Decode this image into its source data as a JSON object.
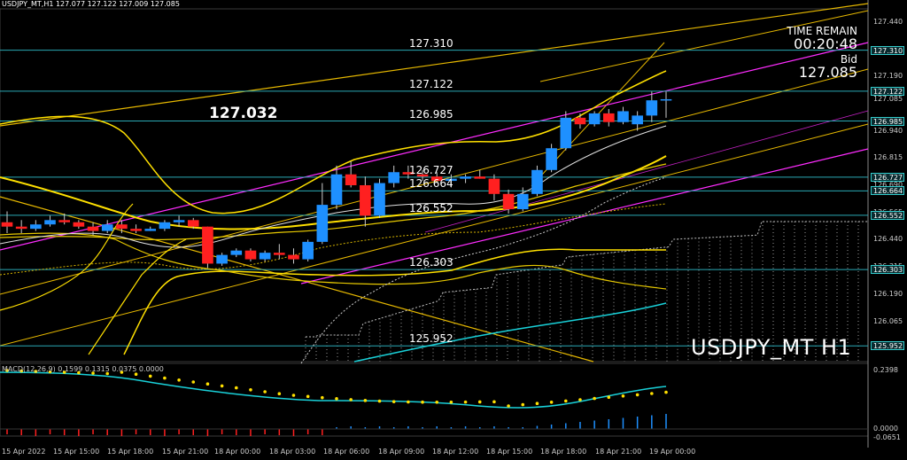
{
  "header": {
    "title": "USDJPY_MT,H1  127.077 127.122 127.009 127.085"
  },
  "big_price": "127.032",
  "levels": [
    {
      "label": "127.310",
      "price": 127.31
    },
    {
      "label": "127.122",
      "price": 127.122
    },
    {
      "label": "126.985",
      "price": 126.985
    },
    {
      "label": "126.727",
      "price": 126.727
    },
    {
      "label": "126.664",
      "price": 126.664
    },
    {
      "label": "126.552",
      "price": 126.552
    },
    {
      "label": "126.303",
      "price": 126.303
    },
    {
      "label": "125.952",
      "price": 125.952
    }
  ],
  "time_remain": {
    "label": "TIME REMAIN",
    "value": "00:20:48"
  },
  "bid": {
    "label": "Bid",
    "value": "127.085"
  },
  "symbol_label": "USDJPY_MT H1",
  "price_axis": [
    "127.440",
    "127.310",
    "127.190",
    "127.085",
    "126.985",
    "126.940",
    "126.815",
    "126.690",
    "126.565",
    "126.440",
    "126.315",
    "126.190",
    "126.065",
    "125.952"
  ],
  "price_tags": [
    {
      "text": "127.310",
      "price": 127.31
    },
    {
      "text": "127.122",
      "price": 127.122
    },
    {
      "text": "126.985",
      "price": 126.985
    },
    {
      "text": "126.727",
      "price": 126.727
    },
    {
      "text": "126.664",
      "price": 126.664
    },
    {
      "text": "126.552",
      "price": 126.552
    },
    {
      "text": "126.303",
      "price": 126.303
    },
    {
      "text": "125.952",
      "price": 125.952
    }
  ],
  "time_axis": [
    "15 Apr 2022",
    "15 Apr 15:00",
    "15 Apr 18:00",
    "15 Apr 21:00",
    "18 Apr 00:00",
    "18 Apr 03:00",
    "18 Apr 06:00",
    "18 Apr 09:00",
    "18 Apr 12:00",
    "18 Apr 15:00",
    "18 Apr 18:00",
    "18 Apr 21:00",
    "19 Apr 00:00"
  ],
  "macd": {
    "label": "MACD(12,26,9) 0.1599 0.1315 0.0375 0.0000",
    "axis_top": "0.2398",
    "axis_zero": "0.0000",
    "axis_bottom": "-0.0651"
  },
  "colors": {
    "bull": "#1e90ff",
    "bear": "#ff2020",
    "ma_yellow": "#ffe000",
    "channel_magenta": "#ff2cff",
    "trend_gold": "#e6b800",
    "cyan": "#19d0d8",
    "level_line": "#2aa9b5"
  },
  "chart_data": {
    "type": "candlestick",
    "ylim": [
      125.88,
      127.5
    ],
    "candles": [
      [
        126.52,
        126.57,
        126.47,
        126.5
      ],
      [
        126.5,
        126.53,
        126.47,
        126.49
      ],
      [
        126.49,
        126.53,
        126.48,
        126.51
      ],
      [
        126.51,
        126.55,
        126.5,
        126.53
      ],
      [
        126.53,
        126.56,
        126.51,
        126.52
      ],
      [
        126.52,
        126.53,
        126.49,
        126.5
      ],
      [
        126.5,
        126.52,
        126.46,
        126.48
      ],
      [
        126.48,
        126.53,
        126.47,
        126.51
      ],
      [
        126.51,
        126.53,
        126.47,
        126.49
      ],
      [
        126.49,
        126.51,
        126.47,
        126.48
      ],
      [
        126.48,
        126.5,
        126.48,
        126.49
      ],
      [
        126.49,
        126.53,
        126.48,
        126.52
      ],
      [
        126.52,
        126.55,
        126.5,
        126.53
      ],
      [
        126.53,
        126.54,
        126.49,
        126.5
      ],
      [
        126.5,
        126.5,
        126.31,
        126.33
      ],
      [
        126.33,
        126.38,
        126.32,
        126.37
      ],
      [
        126.37,
        126.4,
        126.36,
        126.39
      ],
      [
        126.39,
        126.4,
        126.34,
        126.35
      ],
      [
        126.35,
        126.39,
        126.34,
        126.38
      ],
      [
        126.38,
        126.42,
        126.35,
        126.37
      ],
      [
        126.37,
        126.4,
        126.33,
        126.35
      ],
      [
        126.35,
        126.44,
        126.34,
        126.43
      ],
      [
        126.43,
        126.7,
        126.42,
        126.6
      ],
      [
        126.6,
        126.78,
        126.58,
        126.74
      ],
      [
        126.74,
        126.8,
        126.68,
        126.69
      ],
      [
        126.69,
        126.73,
        126.5,
        126.55
      ],
      [
        126.55,
        126.72,
        126.54,
        126.7
      ],
      [
        126.7,
        126.78,
        126.68,
        126.75
      ],
      [
        126.75,
        126.78,
        126.72,
        126.74
      ],
      [
        126.74,
        126.76,
        126.71,
        126.73
      ],
      [
        126.73,
        126.75,
        126.7,
        126.71
      ],
      [
        126.71,
        126.74,
        126.68,
        126.72
      ],
      [
        126.72,
        126.74,
        126.7,
        126.73
      ],
      [
        126.73,
        126.76,
        126.72,
        126.72
      ],
      [
        126.72,
        126.74,
        126.62,
        126.65
      ],
      [
        126.65,
        126.67,
        126.56,
        126.58
      ],
      [
        126.58,
        126.68,
        126.57,
        126.65
      ],
      [
        126.65,
        126.78,
        126.64,
        126.76
      ],
      [
        126.76,
        126.88,
        126.75,
        126.86
      ],
      [
        126.86,
        127.03,
        126.85,
        127.0
      ],
      [
        127.0,
        127.02,
        126.95,
        126.97
      ],
      [
        126.97,
        127.03,
        126.96,
        127.02
      ],
      [
        127.02,
        127.04,
        126.96,
        126.98
      ],
      [
        126.98,
        127.05,
        126.97,
        127.03
      ],
      [
        126.97,
        127.03,
        126.94,
        127.01
      ],
      [
        127.01,
        127.12,
        126.98,
        127.08
      ],
      [
        127.08,
        127.12,
        127.0,
        127.085
      ]
    ]
  }
}
